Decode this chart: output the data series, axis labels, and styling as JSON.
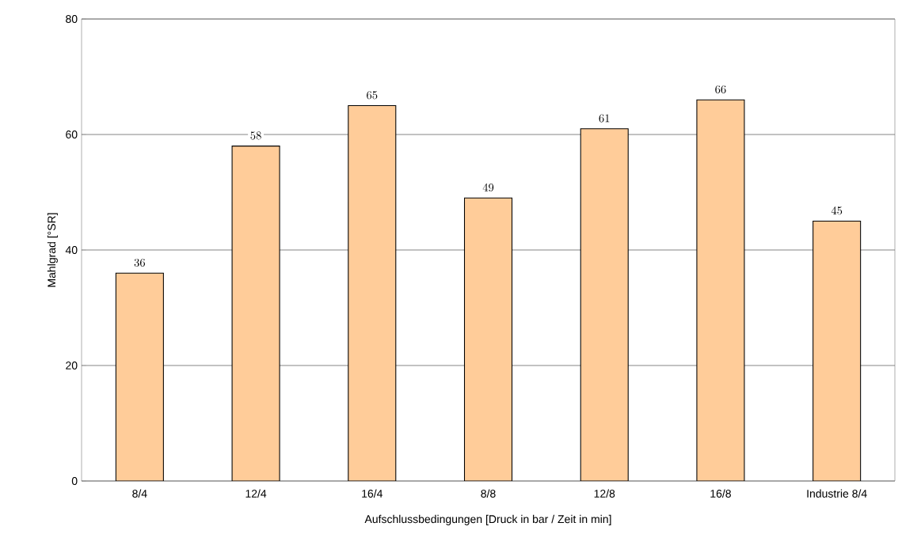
{
  "chart_data": {
    "type": "bar",
    "xlabel": "Aufschlussbedingungen [Druck in bar / Zeit in min]",
    "ylabel": "Mahlgrad [°SR]",
    "categories": [
      "8/4",
      "12/4",
      "16/4",
      "8/8",
      "12/8",
      "16/8",
      "Industrie 8/4"
    ],
    "values": [
      36,
      58,
      65,
      49,
      61,
      66,
      45
    ],
    "color": "#ffcc99",
    "ylim": [
      0,
      80
    ],
    "yticks": [
      0,
      20,
      40,
      60,
      80
    ],
    "grid": "y",
    "data_labels": true
  }
}
